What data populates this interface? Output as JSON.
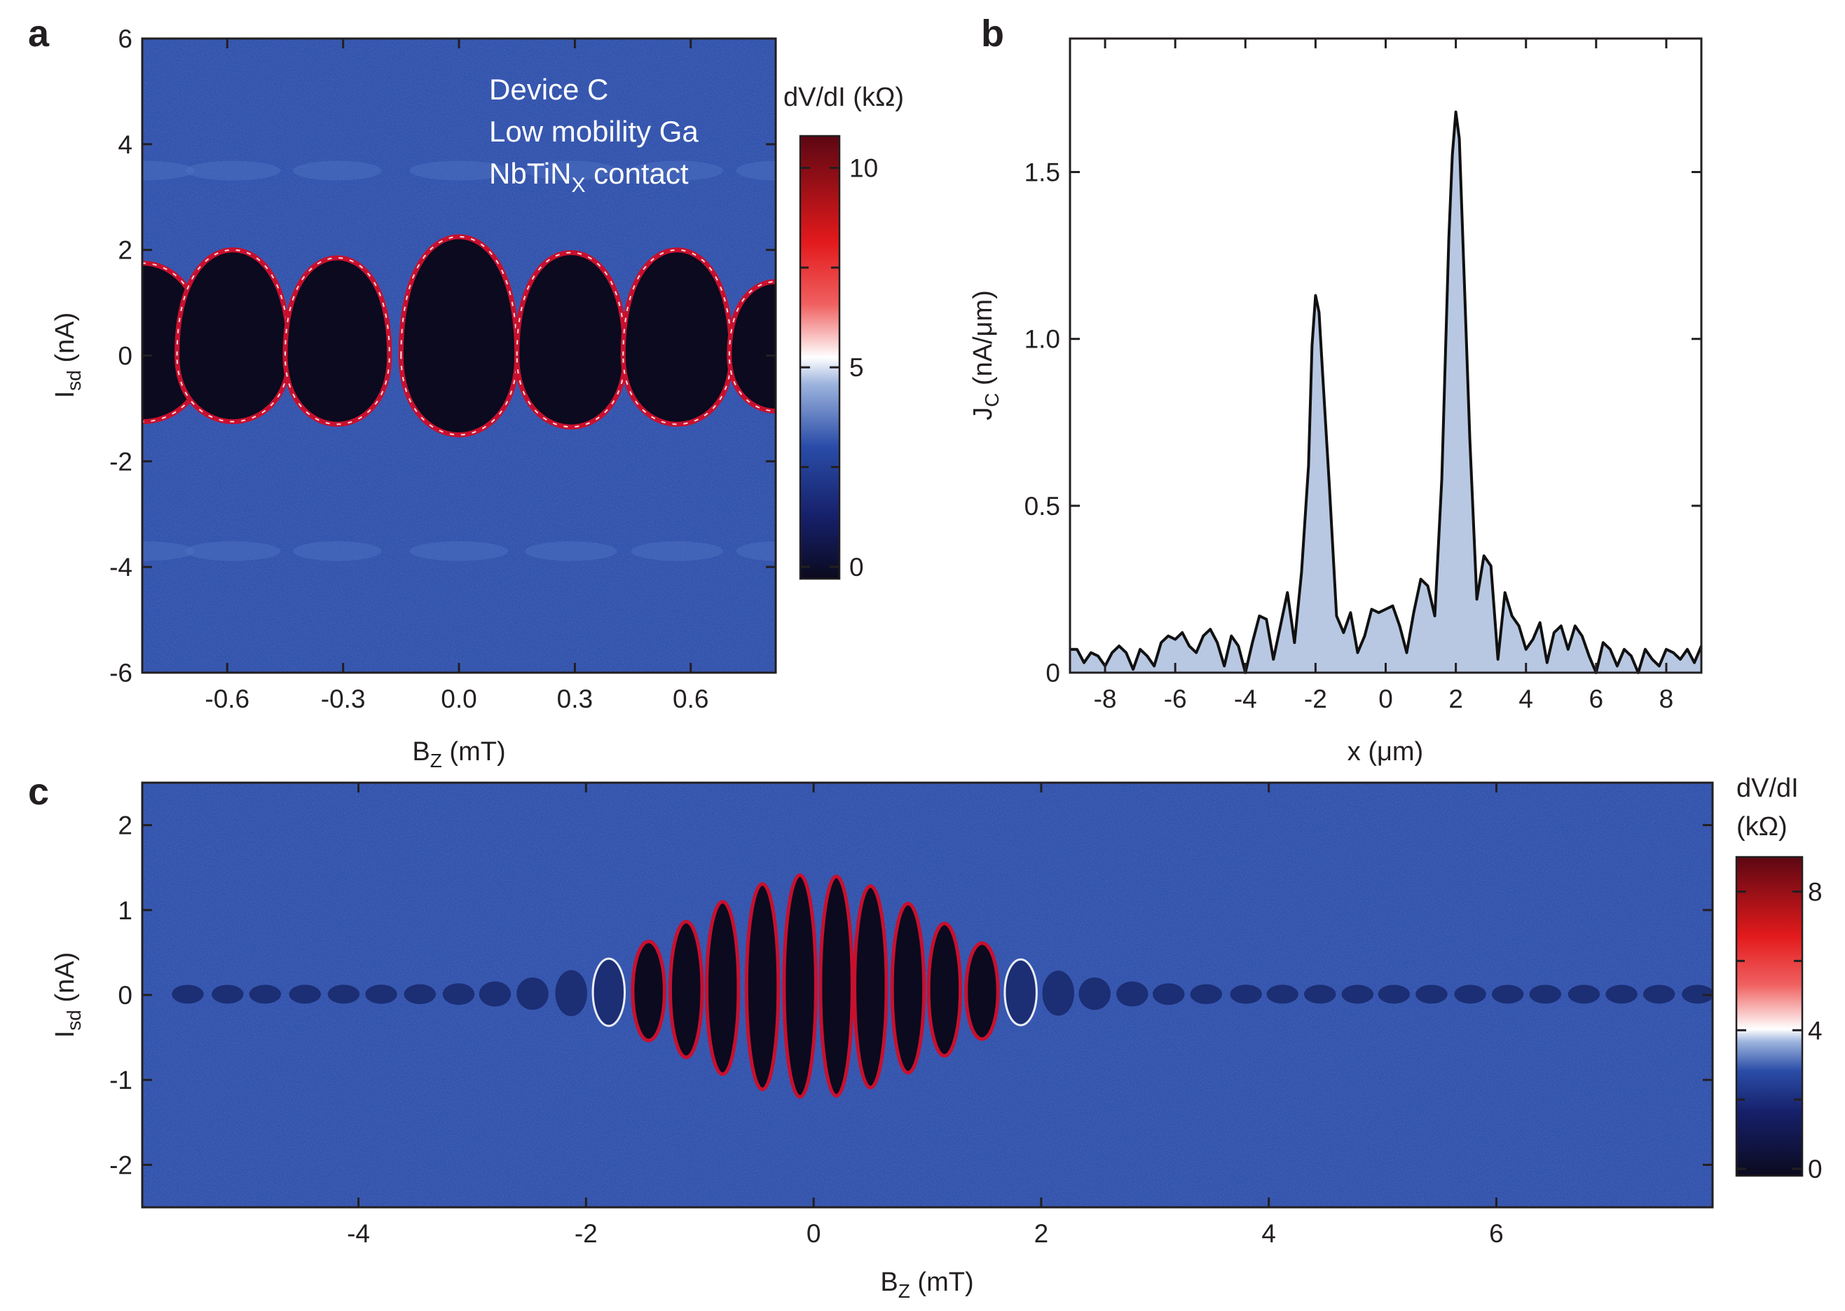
{
  "panel_labels": {
    "a": "a",
    "b": "b",
    "c": "c"
  },
  "colormap": {
    "stops": [
      "#0b0a1e",
      "#16206a",
      "#2a4da8",
      "#9db4dd",
      "#ffffff",
      "#f04040",
      "#e31a1c",
      "#5c0712"
    ],
    "background": "#2c4aa6"
  },
  "chart_data": [
    {
      "id": "a",
      "type": "heatmap",
      "title": "",
      "annotations": [
        "Device C",
        "Low mobility Ga",
        "NbTiN",
        "X",
        " contact"
      ],
      "x": {
        "label": "B",
        "label_sub": "Z",
        "label_unit": " (mT)",
        "range": [
          -0.82,
          0.82
        ],
        "ticks": [
          -0.6,
          -0.3,
          0.0,
          0.3,
          0.6
        ],
        "tick_labels": [
          "-0.6",
          "-0.3",
          "0.0",
          "0.3",
          "0.6"
        ]
      },
      "y": {
        "label": "I",
        "label_sub": "sd",
        "label_unit": " (nA)",
        "range": [
          -6,
          6
        ],
        "ticks": [
          -6,
          -4,
          -2,
          0,
          2,
          4,
          6
        ],
        "tick_labels": [
          "-6",
          "-4",
          "-2",
          "0",
          "2",
          "4",
          "6"
        ]
      },
      "lobes": [
        {
          "center": -0.82,
          "half_width": 0.16,
          "top": 1.75,
          "bottom": -1.25
        },
        {
          "center": -0.585,
          "half_width": 0.145,
          "top": 2.0,
          "bottom": -1.25
        },
        {
          "center": -0.315,
          "half_width": 0.135,
          "top": 1.85,
          "bottom": -1.3
        },
        {
          "center": 0.0,
          "half_width": 0.15,
          "top": 2.25,
          "bottom": -1.5
        },
        {
          "center": 0.29,
          "half_width": 0.14,
          "top": 1.95,
          "bottom": -1.35
        },
        {
          "center": 0.565,
          "half_width": 0.14,
          "top": 2.0,
          "bottom": -1.3
        },
        {
          "center": 0.82,
          "half_width": 0.12,
          "top": 1.4,
          "bottom": -1.05
        }
      ],
      "colorbar": {
        "label": "dV/dI (kΩ)",
        "range": [
          -0.3,
          10.8
        ],
        "ticks": [
          0,
          5,
          10
        ],
        "tick_labels": [
          "0",
          "5",
          "10"
        ],
        "minor_ticks": [
          2.5,
          7.5
        ]
      }
    },
    {
      "id": "b",
      "type": "area",
      "title": "",
      "x": {
        "label": "x (μm)",
        "range": [
          -9,
          9
        ],
        "ticks": [
          -8,
          -6,
          -4,
          -2,
          0,
          2,
          4,
          6,
          8
        ],
        "tick_labels": [
          "-8",
          "-6",
          "-4",
          "-2",
          "0",
          "2",
          "4",
          "6",
          "8"
        ]
      },
      "y": {
        "label": "J",
        "label_sub": "C",
        "label_unit": " (nA/μm)",
        "range": [
          0,
          1.9
        ],
        "ticks": [
          0,
          0.5,
          1.0,
          1.5
        ],
        "tick_labels": [
          "0",
          "0.5",
          "1.0",
          "1.5"
        ]
      },
      "fill_color": "#b8c8e2",
      "line_color": "#111111",
      "points": [
        [
          -9.0,
          0.07
        ],
        [
          -8.8,
          0.07
        ],
        [
          -8.6,
          0.03
        ],
        [
          -8.4,
          0.06
        ],
        [
          -8.2,
          0.05
        ],
        [
          -8.0,
          0.02
        ],
        [
          -7.8,
          0.06
        ],
        [
          -7.6,
          0.08
        ],
        [
          -7.4,
          0.06
        ],
        [
          -7.2,
          0.01
        ],
        [
          -7.0,
          0.07
        ],
        [
          -6.8,
          0.05
        ],
        [
          -6.6,
          0.02
        ],
        [
          -6.4,
          0.09
        ],
        [
          -6.2,
          0.11
        ],
        [
          -6.0,
          0.1
        ],
        [
          -5.8,
          0.12
        ],
        [
          -5.6,
          0.08
        ],
        [
          -5.4,
          0.06
        ],
        [
          -5.2,
          0.11
        ],
        [
          -5.0,
          0.13
        ],
        [
          -4.8,
          0.09
        ],
        [
          -4.6,
          0.02
        ],
        [
          -4.4,
          0.11
        ],
        [
          -4.2,
          0.08
        ],
        [
          -4.0,
          0.0
        ],
        [
          -3.8,
          0.09
        ],
        [
          -3.6,
          0.17
        ],
        [
          -3.4,
          0.16
        ],
        [
          -3.2,
          0.04
        ],
        [
          -3.0,
          0.14
        ],
        [
          -2.8,
          0.24
        ],
        [
          -2.6,
          0.09
        ],
        [
          -2.4,
          0.3
        ],
        [
          -2.2,
          0.62
        ],
        [
          -2.1,
          0.98
        ],
        [
          -2.0,
          1.13
        ],
        [
          -1.9,
          1.08
        ],
        [
          -1.8,
          0.9
        ],
        [
          -1.6,
          0.55
        ],
        [
          -1.4,
          0.17
        ],
        [
          -1.2,
          0.12
        ],
        [
          -1.0,
          0.18
        ],
        [
          -0.8,
          0.06
        ],
        [
          -0.6,
          0.11
        ],
        [
          -0.4,
          0.19
        ],
        [
          -0.2,
          0.18
        ],
        [
          0.0,
          0.19
        ],
        [
          0.2,
          0.2
        ],
        [
          0.4,
          0.14
        ],
        [
          0.6,
          0.06
        ],
        [
          0.8,
          0.18
        ],
        [
          1.0,
          0.28
        ],
        [
          1.2,
          0.26
        ],
        [
          1.4,
          0.17
        ],
        [
          1.6,
          0.58
        ],
        [
          1.8,
          1.3
        ],
        [
          1.9,
          1.55
        ],
        [
          2.0,
          1.68
        ],
        [
          2.1,
          1.6
        ],
        [
          2.2,
          1.3
        ],
        [
          2.4,
          0.7
        ],
        [
          2.6,
          0.22
        ],
        [
          2.8,
          0.35
        ],
        [
          3.0,
          0.32
        ],
        [
          3.2,
          0.04
        ],
        [
          3.4,
          0.24
        ],
        [
          3.6,
          0.17
        ],
        [
          3.8,
          0.14
        ],
        [
          4.0,
          0.07
        ],
        [
          4.2,
          0.1
        ],
        [
          4.4,
          0.15
        ],
        [
          4.6,
          0.03
        ],
        [
          4.8,
          0.12
        ],
        [
          5.0,
          0.14
        ],
        [
          5.2,
          0.07
        ],
        [
          5.4,
          0.14
        ],
        [
          5.6,
          0.11
        ],
        [
          5.8,
          0.05
        ],
        [
          6.0,
          0.0
        ],
        [
          6.2,
          0.09
        ],
        [
          6.4,
          0.07
        ],
        [
          6.6,
          0.02
        ],
        [
          6.8,
          0.07
        ],
        [
          7.0,
          0.05
        ],
        [
          7.2,
          0.0
        ],
        [
          7.4,
          0.07
        ],
        [
          7.6,
          0.04
        ],
        [
          7.8,
          0.02
        ],
        [
          8.0,
          0.07
        ],
        [
          8.2,
          0.06
        ],
        [
          8.4,
          0.04
        ],
        [
          8.6,
          0.07
        ],
        [
          8.8,
          0.03
        ],
        [
          9.0,
          0.08
        ]
      ]
    },
    {
      "id": "c",
      "type": "heatmap",
      "title": "",
      "x": {
        "label": "B",
        "label_sub": "Z",
        "label_unit": " (mT)",
        "range": [
          -5.9,
          7.9
        ],
        "ticks": [
          -4,
          -2,
          0,
          2,
          4,
          6
        ],
        "tick_labels": [
          "-4",
          "-2",
          "0",
          "2",
          "4",
          "6"
        ]
      },
      "y": {
        "label": "I",
        "label_sub": "sd",
        "label_unit": " (nA)",
        "range": [
          -2.5,
          2.5
        ],
        "ticks": [
          -2,
          -1,
          0,
          1,
          2
        ],
        "tick_labels": [
          "-2",
          "-1",
          "0",
          "1",
          "2"
        ]
      },
      "lobe_centers": [
        -5.5,
        -5.15,
        -4.82,
        -4.47,
        -4.13,
        -3.8,
        -3.46,
        -3.12,
        -2.8,
        -2.47,
        -2.13,
        -1.8,
        -1.45,
        -1.12,
        -0.8,
        -0.45,
        -0.12,
        0.2,
        0.5,
        0.83,
        1.15,
        1.48,
        1.82,
        2.15,
        2.47,
        2.8,
        3.12,
        3.45,
        3.8,
        4.12,
        4.45,
        4.78,
        5.1,
        5.43,
        5.77,
        6.1,
        6.43,
        6.77,
        7.1,
        7.43,
        7.77
      ],
      "envelope": {
        "amplitude": 1.3,
        "center": 0.0,
        "width": 1.5,
        "baseline": 0.12
      },
      "colorbar": {
        "label_line1": "dV/dI",
        "label_line2": "(kΩ)",
        "range": [
          -0.2,
          9.0
        ],
        "ticks": [
          0,
          4,
          8
        ],
        "tick_labels": [
          "0",
          "4",
          "8"
        ],
        "minor_ticks": [
          2,
          6
        ]
      }
    }
  ]
}
